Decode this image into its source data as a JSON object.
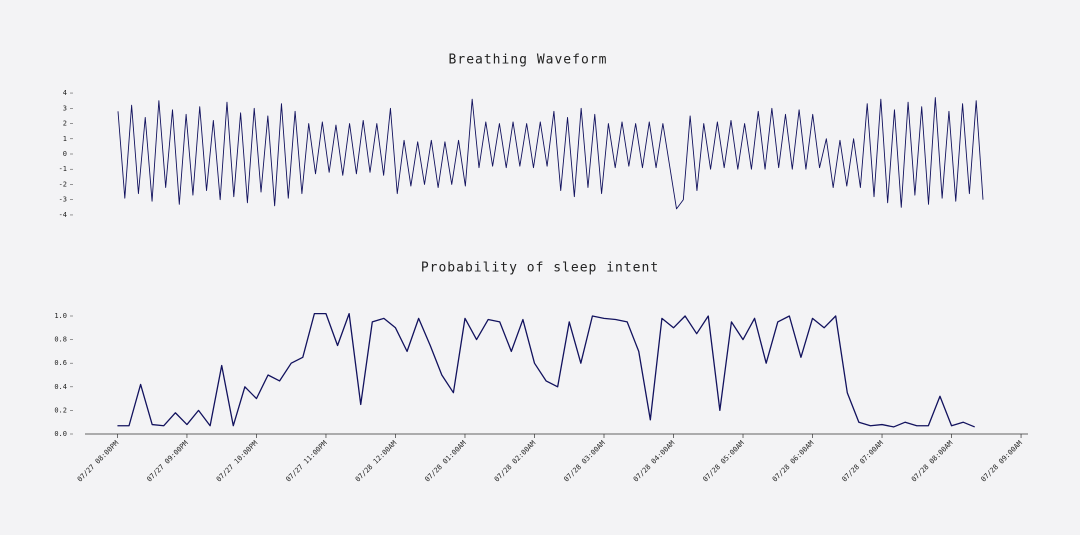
{
  "chart_data": [
    {
      "type": "line",
      "title": "Breathing Waveform",
      "color": "#12125e",
      "ylim": [
        -4.2,
        4.2
      ],
      "yticks": [
        -4,
        -3,
        -2,
        -1,
        0,
        1,
        2,
        3,
        4
      ],
      "values": [
        2.8,
        -2.9,
        3.2,
        -2.6,
        2.4,
        -3.1,
        3.5,
        -2.2,
        2.9,
        -3.3,
        2.6,
        -2.7,
        3.1,
        -2.4,
        2.2,
        -3.0,
        3.4,
        -2.8,
        2.7,
        -3.2,
        3.0,
        -2.5,
        2.5,
        -3.4,
        3.3,
        -2.9,
        2.8,
        -2.6,
        2.0,
        -1.3,
        2.1,
        -1.2,
        1.9,
        -1.4,
        2.0,
        -1.3,
        2.2,
        -1.2,
        2.0,
        -1.4,
        3.0,
        -2.6,
        0.9,
        -2.1,
        0.8,
        -2.0,
        0.9,
        -2.2,
        0.8,
        -2.0,
        0.9,
        -2.1,
        3.6,
        -0.9,
        2.1,
        -0.8,
        2.0,
        -0.9,
        2.1,
        -0.8,
        2.0,
        -0.9,
        2.1,
        -0.8,
        2.8,
        -2.4,
        2.4,
        -2.8,
        3.0,
        -2.2,
        2.6,
        -2.6,
        2.0,
        -0.9,
        2.1,
        -0.8,
        2.0,
        -0.9,
        2.1,
        -0.9,
        2.0,
        -0.8,
        -3.6,
        -3.0,
        2.5,
        -2.4,
        2.0,
        -1.0,
        2.1,
        -0.9,
        2.2,
        -1.0,
        2.0,
        -1.0,
        2.8,
        -1.0,
        3.0,
        -0.9,
        2.6,
        -1.0,
        2.9,
        -1.0,
        2.6,
        -0.9,
        1.0,
        -2.2,
        0.9,
        -2.1,
        1.0,
        -2.2,
        3.3,
        -2.8,
        3.6,
        -3.2,
        2.9,
        -3.5,
        3.4,
        -2.7,
        3.1,
        -3.3,
        3.7,
        -2.9,
        2.8,
        -3.1,
        3.3,
        -2.6,
        3.5,
        -3.0
      ]
    },
    {
      "type": "line",
      "title": "Probability of sleep intent",
      "color": "#12125e",
      "ylim": [
        0,
        1.05
      ],
      "yticks": [
        {
          "value": 0,
          "label": "0.0"
        },
        {
          "value": 0.2,
          "label": "0.2"
        },
        {
          "value": 0.4,
          "label": "0.4"
        },
        {
          "value": 0.6,
          "label": "0.6"
        },
        {
          "value": 0.8,
          "label": "0.8"
        },
        {
          "value": 1,
          "label": "1.0"
        }
      ],
      "xlim": [
        "07/27 07:32PM",
        "07/28 09:06AM"
      ],
      "xticks": [
        "07/27 08:00PM",
        "07/27 09:00PM",
        "07/27 10:00PM",
        "07/27 11:00PM",
        "07/28 12:00AM",
        "07/28 01:00AM",
        "07/28 02:00AM",
        "07/28 03:00AM",
        "07/28 04:00AM",
        "07/28 05:00AM",
        "07/28 06:00AM",
        "07/28 07:00AM",
        "07/28 08:00AM",
        "07/28 09:00AM"
      ],
      "x": [
        "07/27 08:00PM",
        "07/27 08:10PM",
        "07/27 08:20PM",
        "07/27 08:30PM",
        "07/27 08:40PM",
        "07/27 08:50PM",
        "07/27 09:00PM",
        "07/27 09:10PM",
        "07/27 09:20PM",
        "07/27 09:30PM",
        "07/27 09:40PM",
        "07/27 09:50PM",
        "07/27 10:00PM",
        "07/27 10:10PM",
        "07/27 10:20PM",
        "07/27 10:30PM",
        "07/27 10:40PM",
        "07/27 10:50PM",
        "07/27 11:00PM",
        "07/27 11:10PM",
        "07/27 11:20PM",
        "07/27 11:30PM",
        "07/27 11:40PM",
        "07/27 11:50PM",
        "07/28 12:00AM",
        "07/28 12:10AM",
        "07/28 12:20AM",
        "07/28 12:30AM",
        "07/28 12:40AM",
        "07/28 12:50AM",
        "07/28 01:00AM",
        "07/28 01:10AM",
        "07/28 01:20AM",
        "07/28 01:30AM",
        "07/28 01:40AM",
        "07/28 01:50AM",
        "07/28 02:00AM",
        "07/28 02:10AM",
        "07/28 02:20AM",
        "07/28 02:30AM",
        "07/28 02:40AM",
        "07/28 02:50AM",
        "07/28 03:00AM",
        "07/28 03:10AM",
        "07/28 03:20AM",
        "07/28 03:30AM",
        "07/28 03:40AM",
        "07/28 03:50AM",
        "07/28 04:00AM",
        "07/28 04:10AM",
        "07/28 04:20AM",
        "07/28 04:30AM",
        "07/28 04:40AM",
        "07/28 04:50AM",
        "07/28 05:00AM",
        "07/28 05:10AM",
        "07/28 05:20AM",
        "07/28 05:30AM",
        "07/28 05:40AM",
        "07/28 05:50AM",
        "07/28 06:00AM",
        "07/28 06:10AM",
        "07/28 06:20AM",
        "07/28 06:30AM",
        "07/28 06:40AM",
        "07/28 06:50AM",
        "07/28 07:00AM",
        "07/28 07:10AM",
        "07/28 07:20AM",
        "07/28 07:30AM",
        "07/28 07:40AM",
        "07/28 07:50AM",
        "07/28 08:00AM",
        "07/28 08:10AM",
        "07/28 08:20AM"
      ],
      "values": [
        0.07,
        0.07,
        0.42,
        0.08,
        0.07,
        0.18,
        0.08,
        0.2,
        0.07,
        0.58,
        0.07,
        0.4,
        0.3,
        0.5,
        0.45,
        0.6,
        0.65,
        1.02,
        1.02,
        0.75,
        1.02,
        0.25,
        0.95,
        0.98,
        0.9,
        0.7,
        0.98,
        0.75,
        0.5,
        0.35,
        0.98,
        0.8,
        0.97,
        0.95,
        0.7,
        0.97,
        0.6,
        0.45,
        0.4,
        0.95,
        0.6,
        1.0,
        0.98,
        0.97,
        0.95,
        0.7,
        0.12,
        0.98,
        0.9,
        1.0,
        0.85,
        1.0,
        0.2,
        0.95,
        0.8,
        0.98,
        0.6,
        0.95,
        1.0,
        0.65,
        0.98,
        0.9,
        1.0,
        0.35,
        0.1,
        0.07,
        0.08,
        0.06,
        0.1,
        0.07,
        0.07,
        0.32,
        0.07,
        0.1,
        0.06
      ]
    }
  ]
}
